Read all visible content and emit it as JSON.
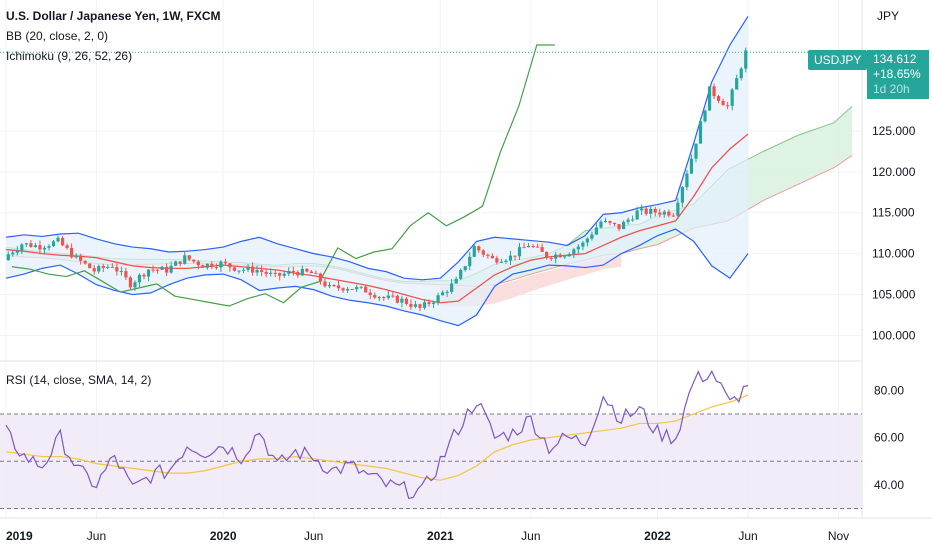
{
  "header": {
    "symbol_title": "U.S. Dollar / Japanese Yen, 1W, FXCM",
    "bb_label": "BB (20, close, 2, 0)",
    "ichimoku_label": "Ichimoku (9, 26, 52, 26)",
    "rsi_label": "RSI (14, close, SMA, 14, 2)"
  },
  "price_axis": {
    "currency": "JPY",
    "tag_symbol": "USDJPY",
    "last_price": "134.612",
    "change_pct": "+18.65%",
    "countdown": "1d 20h"
  },
  "colors": {
    "up": "#26a69a",
    "down": "#ef5350",
    "bb_band": "#2962ff",
    "bb_fill": "#e3f0fc",
    "tenkan": "#2962ff",
    "kijun": "#ef5350",
    "chikou": "#43a047",
    "cloud_up": "#d7f0de",
    "cloud_down": "#f9dada",
    "rsi_line": "#7e57c2",
    "rsi_ma": "#f4c542",
    "rsi_band": "#ede7f6"
  },
  "chart_data": [
    {
      "type": "candlestick",
      "title": "U.S. Dollar / Japanese Yen, 1W, FXCM",
      "ylabel": "JPY",
      "ylim": [
        97,
        141
      ],
      "y_ticks": [
        100,
        105,
        110,
        115,
        120,
        125
      ],
      "y_tick_labels": [
        "100.000",
        "105.000",
        "110.000",
        "115.000",
        "120.000",
        "125.000"
      ],
      "x_tick_labels": [
        "2019",
        "Jun",
        "2020",
        "Jun",
        "2021",
        "Jun",
        "2022",
        "Jun",
        "Nov"
      ],
      "x_tick_bold": [
        true,
        false,
        true,
        false,
        true,
        false,
        true,
        false,
        false
      ],
      "last_value": 134.612,
      "series": [
        {
          "name": "USDJPY",
          "x": [
            "2019-01",
            "2019-02",
            "2019-03",
            "2019-04",
            "2019-05",
            "2019-06",
            "2019-07",
            "2019-08",
            "2019-09",
            "2019-10",
            "2019-11",
            "2019-12",
            "2020-01",
            "2020-02",
            "2020-03",
            "2020-04",
            "2020-05",
            "2020-06",
            "2020-07",
            "2020-08",
            "2020-09",
            "2020-10",
            "2020-11",
            "2020-12",
            "2021-01",
            "2021-02",
            "2021-03",
            "2021-04",
            "2021-05",
            "2021-06",
            "2021-07",
            "2021-08",
            "2021-09",
            "2021-10",
            "2021-11",
            "2021-12",
            "2022-01",
            "2022-02",
            "2022-03",
            "2022-04",
            "2022-05",
            "2022-06"
          ],
          "values": [
            109.5,
            111.2,
            110.9,
            111.5,
            109.4,
            107.9,
            108.6,
            106.3,
            108.1,
            108.0,
            109.5,
            108.6,
            108.8,
            108.1,
            108.0,
            107.2,
            107.8,
            107.6,
            105.8,
            105.9,
            105.5,
            104.6,
            104.3,
            103.3,
            104.7,
            106.6,
            110.8,
            109.3,
            109.6,
            111.1,
            109.7,
            110.0,
            111.2,
            113.9,
            113.2,
            115.1,
            115.1,
            115.0,
            121.7,
            130.0,
            128.0,
            134.6
          ]
        }
      ],
      "overlays": [
        {
          "name": "BB upper",
          "values": [
            112.0,
            112.3,
            112.1,
            112.4,
            112.5,
            111.8,
            111.2,
            110.8,
            110.6,
            110.2,
            110.3,
            110.5,
            110.8,
            111.5,
            112.0,
            111.2,
            110.6,
            110.0,
            109.6,
            109.0,
            108.2,
            107.8,
            107.0,
            106.8,
            107.0,
            109.0,
            111.5,
            112.0,
            111.8,
            111.6,
            111.4,
            111.0,
            112.2,
            114.8,
            115.0,
            115.6,
            116.0,
            116.5,
            123.5,
            131.0,
            135.5,
            139.0
          ]
        },
        {
          "name": "BB lower",
          "values": [
            107.0,
            107.5,
            108.2,
            108.6,
            107.5,
            106.2,
            105.5,
            105.0,
            105.2,
            106.2,
            107.0,
            107.4,
            107.5,
            106.8,
            105.5,
            105.8,
            106.0,
            105.6,
            104.8,
            104.3,
            104.0,
            103.6,
            103.0,
            102.5,
            101.8,
            101.2,
            102.5,
            106.0,
            107.5,
            108.0,
            108.6,
            108.5,
            108.3,
            108.6,
            110.0,
            111.0,
            112.2,
            113.0,
            111.5,
            108.5,
            107.0,
            110.0
          ]
        },
        {
          "name": "Kijun",
          "values": [
            110.5,
            110.3,
            110.0,
            109.8,
            109.7,
            109.5,
            109.0,
            108.5,
            108.3,
            108.2,
            108.2,
            108.4,
            108.6,
            108.4,
            108.2,
            108.0,
            107.6,
            107.3,
            106.9,
            106.5,
            106.1,
            105.6,
            105.0,
            104.4,
            104.0,
            104.2,
            105.8,
            107.4,
            108.4,
            109.2,
            109.6,
            109.8,
            110.0,
            111.0,
            112.0,
            112.8,
            113.4,
            114.0,
            117.0,
            120.5,
            122.8,
            124.6
          ]
        },
        {
          "name": "Chikou",
          "values": [
            108.4,
            108.1,
            107.5,
            107.2,
            107.9,
            106.6,
            105.3,
            105.8,
            106.3,
            104.8,
            104.4,
            104.0,
            103.6,
            104.5,
            105.1,
            104.0,
            105.9,
            106.6,
            110.7,
            109.4,
            110.2,
            110.6,
            113.4,
            115.0,
            113.4,
            114.5,
            115.8,
            122.5,
            128.0,
            135.5,
            135.5
          ]
        },
        {
          "name": "Cloud upper",
          "values": [
            110.8,
            110.5,
            110.2,
            110.0,
            109.9,
            109.6,
            109.4,
            109.3,
            109.3,
            109.3,
            109.2,
            109.1,
            109.0,
            108.9,
            108.7,
            108.6,
            108.8,
            108.8,
            108.5,
            108.0,
            107.4,
            106.9,
            106.6,
            106.6,
            106.7,
            106.7,
            107.6,
            108.7,
            109.2,
            109.5,
            110.0,
            111.0,
            112.8,
            113.1,
            113.4,
            113.6,
            114.6,
            116.0,
            120.3,
            122.5,
            124.5,
            126.0,
            128.0
          ]
        },
        {
          "name": "Cloud lower",
          "values": [
            109.8,
            109.6,
            109.5,
            109.3,
            109.0,
            108.8,
            108.6,
            108.6,
            108.7,
            108.8,
            108.8,
            108.8,
            108.7,
            108.6,
            108.5,
            108.4,
            108.4,
            108.5,
            108.3,
            107.8,
            107.2,
            106.7,
            106.4,
            106.3,
            106.2,
            106.1,
            106.0,
            106.2,
            106.8,
            107.5,
            108.1,
            108.7,
            109.2,
            109.8,
            110.0,
            110.6,
            111.1,
            113.1,
            114.0,
            116.5,
            118.5,
            120.5,
            122.0
          ]
        }
      ]
    },
    {
      "type": "line",
      "title": "RSI (14, close, SMA, 14, 2)",
      "ylim": [
        26,
        92
      ],
      "y_ticks": [
        40,
        60,
        80
      ],
      "y_tick_labels": [
        "40.00",
        "60.00",
        "80.00"
      ],
      "band": [
        30,
        70
      ],
      "midline": 50,
      "series": [
        {
          "name": "RSI",
          "values": [
            62,
            52,
            48,
            60,
            46,
            40,
            52,
            38,
            44,
            46,
            57,
            54,
            57,
            52,
            63,
            48,
            54,
            52,
            46,
            48,
            44,
            40,
            38,
            37,
            50,
            64,
            76,
            60,
            62,
            68,
            56,
            60,
            58,
            78,
            68,
            72,
            62,
            60,
            84,
            88,
            74,
            82
          ]
        },
        {
          "name": "RSI-based MA",
          "values": [
            54,
            53,
            52,
            52,
            51,
            49,
            48,
            47,
            46,
            45,
            45,
            46,
            48,
            50,
            51,
            51,
            52,
            51,
            50,
            49,
            48,
            47,
            45,
            43,
            42,
            44,
            48,
            54,
            57,
            59,
            60,
            61,
            62,
            63,
            64,
            66,
            66,
            67,
            70,
            73,
            75,
            78
          ]
        }
      ]
    }
  ]
}
